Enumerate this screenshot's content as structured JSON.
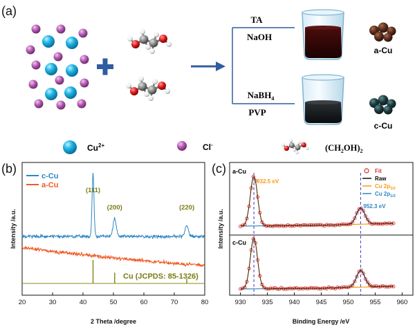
{
  "panels": {
    "a": "(a)",
    "b": "(b)",
    "c": "(c)"
  },
  "scheme": {
    "top_reagents": [
      "TA",
      "NaOH"
    ],
    "bottom_reagent_1": "NaBH",
    "bottom_reagent_1_sub": "4",
    "bottom_reagent_2": "PVP",
    "product_top": "a-Cu",
    "product_bottom": "c-Cu",
    "legend_cu": "Cu",
    "legend_cu_sup": "2+",
    "legend_cl": "Cl",
    "legend_cl_sup": "-",
    "legend_eg": "(CH",
    "legend_eg_sub1": "2",
    "legend_eg_mid": "OH)",
    "legend_eg_sub2": "2",
    "colors": {
      "cu": "#1fb6e6",
      "cl": "#b65db4",
      "arrow": "#2f5da0",
      "a_cu": "#5a2e1c",
      "c_cu": "#1e3a3c"
    }
  },
  "chart_data": [
    {
      "type": "line",
      "id": "xrd",
      "xlabel": "2 Theta /degree",
      "ylabel": "Intensity /a.u.",
      "xlim": [
        20,
        80
      ],
      "xticks": [
        20,
        30,
        40,
        50,
        60,
        70,
        80
      ],
      "legend": [
        {
          "name": "c-Cu",
          "color": "#2e86c1"
        },
        {
          "name": "a-Cu",
          "color": "#ee5a24"
        }
      ],
      "peak_labels": [
        {
          "text": "(111)",
          "x": 43.3
        },
        {
          "text": "(200)",
          "x": 50.4
        },
        {
          "text": "(220)",
          "x": 74.1
        }
      ],
      "reference": {
        "label": "Cu (JCPDS: 85-1326)",
        "color": "#8a8a1a",
        "lines": [
          {
            "x": 43.3,
            "intensity": 100
          },
          {
            "x": 50.4,
            "intensity": 46
          },
          {
            "x": 74.1,
            "intensity": 20
          }
        ]
      },
      "series": [
        {
          "name": "c-Cu",
          "color": "#2e86c1",
          "peaks": [
            {
              "x": 43.3,
              "h": 100
            },
            {
              "x": 50.4,
              "h": 28
            },
            {
              "x": 74.1,
              "h": 17
            }
          ]
        },
        {
          "name": "a-Cu",
          "color": "#ee5a24",
          "peaks": []
        }
      ]
    },
    {
      "type": "line",
      "id": "xps",
      "xlabel": "Binding Energy /eV",
      "ylabel": "Intensity /a.u.",
      "xlim": [
        928,
        962
      ],
      "xticks": [
        930,
        935,
        940,
        945,
        950,
        955,
        960
      ],
      "legend": [
        {
          "name": "Fit",
          "color": "#d9302c",
          "marker": "circle"
        },
        {
          "name": "Raw",
          "color": "#111111"
        },
        {
          "name": "Cu 2p",
          "sub": "3/2",
          "color": "#f39c12"
        },
        {
          "name": "Cu 2p",
          "sub": "1/2",
          "color": "#2e86c1"
        }
      ],
      "subpanels": [
        {
          "label": "a-Cu",
          "peaks": [
            {
              "x": 932.5,
              "label": "932.5 eV",
              "h": 100
            },
            {
              "x": 952.3,
              "label": "952.3 eV",
              "h": 33
            }
          ]
        },
        {
          "label": "c-Cu",
          "peaks": [
            {
              "x": 932.5,
              "h": 100
            },
            {
              "x": 952.3,
              "h": 33
            }
          ]
        }
      ],
      "dashed_lines": [
        932.5,
        952.3
      ]
    }
  ]
}
